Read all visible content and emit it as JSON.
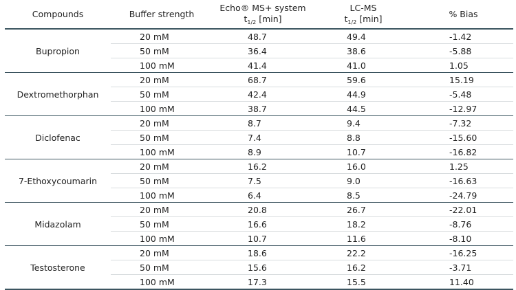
{
  "table": {
    "headers": {
      "compounds": "Compounds",
      "buffer": "Buffer strength",
      "echo_line1": "Echo® MS+ system",
      "echo_t": "t",
      "echo_sub": "1/2",
      "echo_unit": " [min]",
      "lcms_line1": "LC-MS",
      "lcms_t": "t",
      "lcms_sub": "1/2",
      "lcms_unit": " [min]",
      "bias": "% Bias"
    },
    "groups": [
      {
        "compound": "Bupropion",
        "rows": [
          {
            "buffer": "20 mM",
            "echo": "48.7",
            "lcms": "49.4",
            "bias": "-1.42"
          },
          {
            "buffer": "50 mM",
            "echo": "36.4",
            "lcms": "38.6",
            "bias": "-5.88"
          },
          {
            "buffer": "100 mM",
            "echo": "41.4",
            "lcms": "41.0",
            "bias": "1.05"
          }
        ]
      },
      {
        "compound": "Dextromethorphan",
        "rows": [
          {
            "buffer": "20 mM",
            "echo": "68.7",
            "lcms": "59.6",
            "bias": "15.19"
          },
          {
            "buffer": "50 mM",
            "echo": "42.4",
            "lcms": "44.9",
            "bias": "-5.48"
          },
          {
            "buffer": "100 mM",
            "echo": "38.7",
            "lcms": "44.5",
            "bias": "-12.97"
          }
        ]
      },
      {
        "compound": "Diclofenac",
        "rows": [
          {
            "buffer": "20 mM",
            "echo": "8.7",
            "lcms": "9.4",
            "bias": "-7.32"
          },
          {
            "buffer": "50 mM",
            "echo": "7.4",
            "lcms": "8.8",
            "bias": "-15.60"
          },
          {
            "buffer": "100 mM",
            "echo": "8.9",
            "lcms": "10.7",
            "bias": "-16.82"
          }
        ]
      },
      {
        "compound": "7-Ethoxycoumarin",
        "rows": [
          {
            "buffer": "20 mM",
            "echo": "16.2",
            "lcms": "16.0",
            "bias": "1.25"
          },
          {
            "buffer": "50 mM",
            "echo": "7.5",
            "lcms": "9.0",
            "bias": "-16.63"
          },
          {
            "buffer": "100 mM",
            "echo": "6.4",
            "lcms": "8.5",
            "bias": "-24.79"
          }
        ]
      },
      {
        "compound": "Midazolam",
        "rows": [
          {
            "buffer": "20 mM",
            "echo": "20.8",
            "lcms": "26.7",
            "bias": "-22.01"
          },
          {
            "buffer": "50 mM",
            "echo": "16.6",
            "lcms": "18.2",
            "bias": "-8.76"
          },
          {
            "buffer": "100 mM",
            "echo": "10.7",
            "lcms": "11.6",
            "bias": "-8.10"
          }
        ]
      },
      {
        "compound": "Testosterone",
        "rows": [
          {
            "buffer": "20 mM",
            "echo": "18.6",
            "lcms": "22.2",
            "bias": "-16.25"
          },
          {
            "buffer": "50 mM",
            "echo": "15.6",
            "lcms": "16.2",
            "bias": "-3.71"
          },
          {
            "buffer": "100 mM",
            "echo": "17.3",
            "lcms": "15.5",
            "bias": "11.40"
          }
        ]
      }
    ]
  },
  "colors": {
    "rule_strong": "#3c5560",
    "rule_light": "#d8dcde",
    "text": "#222222"
  }
}
